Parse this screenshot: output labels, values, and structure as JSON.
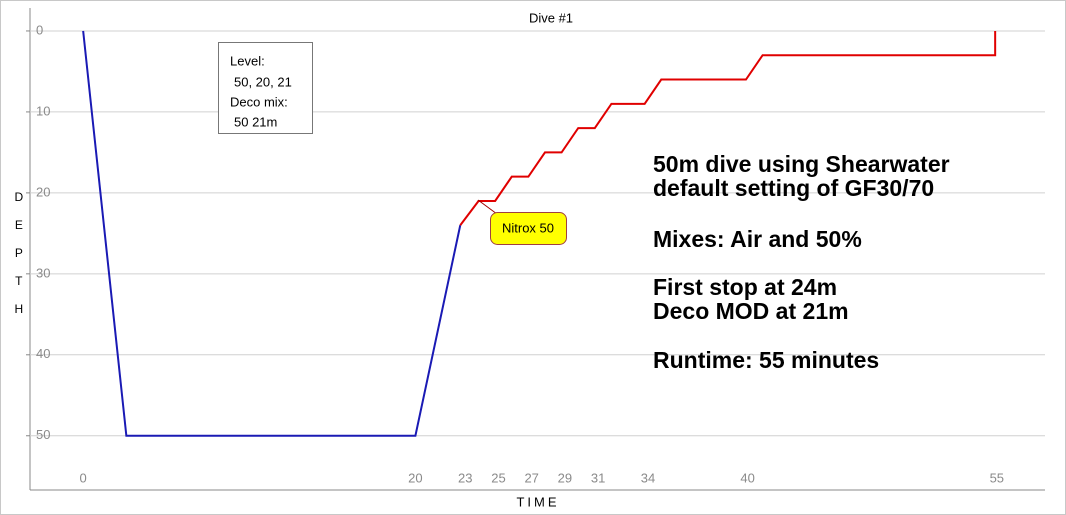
{
  "chart_data": {
    "type": "line",
    "title": "Dive #1",
    "y_label": "DEPTH",
    "x_label": "TIME",
    "ylim": [
      -1.6,
      56.7
    ],
    "yticks": [
      0,
      10,
      20,
      30,
      40,
      50
    ],
    "xlim": [
      -3.2,
      57.9
    ],
    "xticks": [
      0,
      20,
      23,
      25,
      27,
      29,
      31,
      34,
      40,
      55
    ],
    "grid": true,
    "y_inverted": true,
    "series": [
      {
        "color": "#1a1ab4",
        "x": [
          0,
          2.6,
          20,
          22.7
        ],
        "values": [
          0,
          50,
          50,
          24
        ]
      },
      {
        "color": "#e00000",
        "x": [
          22.7,
          23.8,
          24.8,
          25.8,
          26.8,
          27.8,
          28.8,
          29.8,
          30.8,
          31.8,
          33.8,
          34.8,
          39.9,
          40.9,
          54.9,
          54.9
        ],
        "values": [
          24,
          21,
          21,
          18,
          18,
          15,
          15,
          12,
          12,
          9,
          9,
          6,
          6,
          3,
          3,
          0
        ]
      }
    ],
    "level_box": [
      "Level:",
      "50, 20, 21",
      "Deco mix:",
      "50 21m"
    ],
    "callout": "Nitrox 50",
    "notes": [
      "50m dive using Shearwater",
      "default setting of GF30/70",
      "Mixes: Air and 50%",
      "First stop at 24m",
      "Deco MOD at 21m",
      "Runtime: 55 minutes"
    ]
  }
}
